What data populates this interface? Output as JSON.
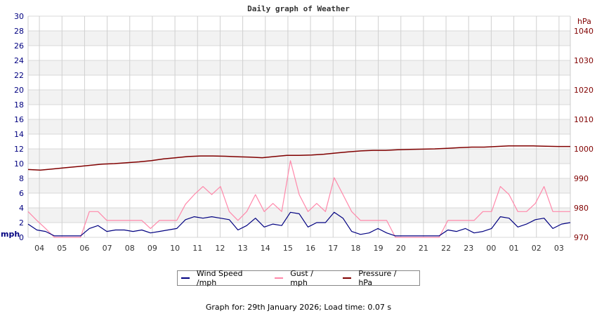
{
  "page": {
    "footer_text": "Graph for: 29th January 2026; Load time: 0.07 s"
  },
  "legend": {
    "items": [
      {
        "label": "Wind Speed /mph",
        "color": "#000080"
      },
      {
        "label": "Gust / mph",
        "color": "#ff88aa"
      },
      {
        "label": "Pressure / hPa",
        "color": "#800000"
      }
    ]
  },
  "chart_data": {
    "type": "line",
    "title": "Daily graph of Weather",
    "xlabel": "",
    "ylabel": "mph",
    "ylabel_right": "hPa",
    "ylim": [
      0,
      30
    ],
    "ylim_right": [
      970,
      1045
    ],
    "yticks_left": [
      0,
      2,
      4,
      6,
      8,
      10,
      12,
      14,
      16,
      18,
      20,
      22,
      24,
      26,
      28,
      30
    ],
    "yticks_right": [
      970,
      980,
      990,
      1000,
      1010,
      1020,
      1030,
      1040
    ],
    "x_tick_labels": [
      "04",
      "05",
      "06",
      "07",
      "08",
      "09",
      "10",
      "11",
      "12",
      "13",
      "14",
      "15",
      "16",
      "17",
      "18",
      "19",
      "20",
      "21",
      "22",
      "23",
      "00",
      "01",
      "02",
      "03"
    ],
    "grid": true,
    "legend_position": "bottom",
    "x_hours_start": 3.5,
    "x_hours_step": 0.5,
    "series": [
      {
        "name": "Wind Speed /mph",
        "color": "#000080",
        "axis": "left",
        "values": [
          1.8,
          1.0,
          0.8,
          0.2,
          0.2,
          0.2,
          0.2,
          1.2,
          1.6,
          0.8,
          1.0,
          1.0,
          0.8,
          1.0,
          0.6,
          0.8,
          1.0,
          1.2,
          2.4,
          2.8,
          2.6,
          2.8,
          2.6,
          2.4,
          1.0,
          1.6,
          2.6,
          1.4,
          1.8,
          1.6,
          3.4,
          3.2,
          1.4,
          2.0,
          2.0,
          3.4,
          2.6,
          0.8,
          0.4,
          0.6,
          1.2,
          0.6,
          0.2,
          0.2,
          0.2,
          0.2,
          0.2,
          0.2,
          1.0,
          0.8,
          1.2,
          0.6,
          0.8,
          1.2,
          2.8,
          2.6,
          1.4,
          1.8,
          2.4,
          2.6,
          1.2,
          1.8,
          2.0
        ]
      },
      {
        "name": "Gust / mph",
        "color": "#ff88aa",
        "axis": "left",
        "values": [
          3.5,
          2.3,
          1.2,
          0.0,
          0.0,
          0.0,
          0.0,
          3.5,
          3.5,
          2.3,
          2.3,
          2.3,
          2.3,
          2.3,
          1.2,
          2.3,
          2.3,
          2.3,
          4.5,
          5.8,
          6.9,
          5.8,
          6.9,
          3.5,
          2.3,
          3.5,
          5.8,
          3.5,
          4.6,
          3.5,
          10.4,
          5.8,
          3.5,
          4.6,
          3.5,
          8.1,
          5.8,
          3.5,
          2.3,
          2.3,
          2.3,
          2.3,
          0.0,
          0.0,
          0.0,
          0.0,
          0.0,
          0.0,
          2.3,
          2.3,
          2.3,
          2.3,
          3.5,
          3.5,
          6.9,
          5.8,
          3.5,
          3.5,
          4.6,
          6.9,
          3.5,
          3.5,
          3.5
        ]
      },
      {
        "name": "Pressure / hPa",
        "color": "#800000",
        "axis": "right",
        "values": [
          993.0,
          992.8,
          993.2,
          993.6,
          994.0,
          994.4,
          994.8,
          995.0,
          995.3,
          995.6,
          996.0,
          996.6,
          997.0,
          997.4,
          997.6,
          997.6,
          997.5,
          997.3,
          997.2,
          997.0,
          997.4,
          997.8,
          997.8,
          997.9,
          998.2,
          998.6,
          999.0,
          999.3,
          999.5,
          999.5,
          999.7,
          999.8,
          999.9,
          1000.0,
          1000.2,
          1000.4,
          1000.6,
          1000.6,
          1000.8,
          1001.0,
          1001.0,
          1001.0,
          1000.9,
          1000.8,
          1000.8
        ]
      }
    ]
  }
}
